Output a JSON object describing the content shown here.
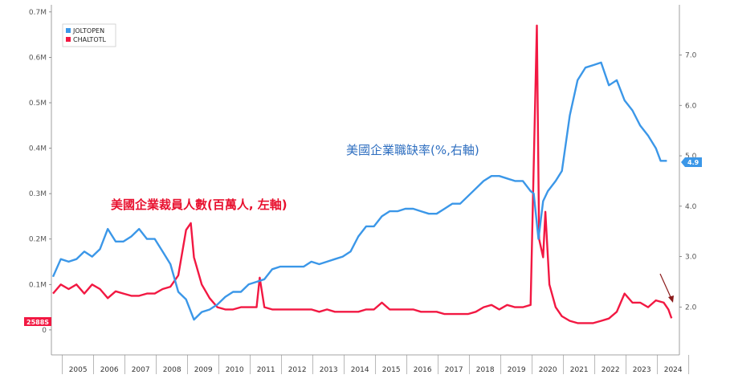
{
  "chart_data": {
    "type": "line",
    "legend": {
      "placement": "top-left"
    },
    "annotations": {
      "layoffs": "美國企業裁員人數(百萬人, 左軸)",
      "openings": "美國企業職缺率(%,右軸)"
    },
    "x_axis": {
      "range": [
        2004.65,
        2024.7
      ],
      "years": [
        "2005",
        "2006",
        "2007",
        "2008",
        "2009",
        "2010",
        "2011",
        "2012",
        "2013",
        "2014",
        "2015",
        "2016",
        "2017",
        "2018",
        "2019",
        "2020",
        "2021",
        "2022",
        "2023",
        "2024"
      ]
    },
    "left_axis": {
      "ylim": [
        -0.055,
        0.705
      ],
      "ticks": [
        "0",
        "0.1M",
        "0.2M",
        "0.3M",
        "0.4M",
        "0.5M",
        "0.6M",
        "0.7M"
      ],
      "last_value_label": "2588S",
      "last_value": 0.0256
    },
    "right_axis": {
      "ylim": [
        1.05,
        7.9
      ],
      "ticks": [
        "2.0",
        "3.0",
        "4.0",
        "5.0",
        "6.0",
        "7.0"
      ],
      "last_value_label": "4.9",
      "last_value": 4.9
    },
    "series": [
      {
        "name": "JOLTOPEN",
        "axis": "right",
        "color": "#3b97e8",
        "points": [
          [
            2004.7,
            2.6
          ],
          [
            2004.95,
            2.95
          ],
          [
            2005.2,
            2.9
          ],
          [
            2005.45,
            2.95
          ],
          [
            2005.7,
            3.1
          ],
          [
            2005.95,
            3.0
          ],
          [
            2006.2,
            3.15
          ],
          [
            2006.45,
            3.55
          ],
          [
            2006.7,
            3.3
          ],
          [
            2006.95,
            3.3
          ],
          [
            2007.2,
            3.4
          ],
          [
            2007.45,
            3.55
          ],
          [
            2007.7,
            3.35
          ],
          [
            2007.95,
            3.35
          ],
          [
            2008.2,
            3.1
          ],
          [
            2008.45,
            2.85
          ],
          [
            2008.7,
            2.3
          ],
          [
            2008.95,
            2.15
          ],
          [
            2009.2,
            1.75
          ],
          [
            2009.45,
            1.9
          ],
          [
            2009.7,
            1.95
          ],
          [
            2009.95,
            2.05
          ],
          [
            2010.2,
            2.2
          ],
          [
            2010.45,
            2.3
          ],
          [
            2010.7,
            2.3
          ],
          [
            2010.95,
            2.45
          ],
          [
            2011.2,
            2.5
          ],
          [
            2011.45,
            2.55
          ],
          [
            2011.7,
            2.75
          ],
          [
            2011.95,
            2.8
          ],
          [
            2012.2,
            2.8
          ],
          [
            2012.45,
            2.8
          ],
          [
            2012.7,
            2.8
          ],
          [
            2012.95,
            2.9
          ],
          [
            2013.2,
            2.85
          ],
          [
            2013.45,
            2.9
          ],
          [
            2013.7,
            2.95
          ],
          [
            2013.95,
            3.0
          ],
          [
            2014.2,
            3.1
          ],
          [
            2014.45,
            3.4
          ],
          [
            2014.7,
            3.6
          ],
          [
            2014.95,
            3.6
          ],
          [
            2015.2,
            3.8
          ],
          [
            2015.45,
            3.9
          ],
          [
            2015.7,
            3.9
          ],
          [
            2015.95,
            3.95
          ],
          [
            2016.2,
            3.95
          ],
          [
            2016.45,
            3.9
          ],
          [
            2016.7,
            3.85
          ],
          [
            2016.95,
            3.85
          ],
          [
            2017.2,
            3.95
          ],
          [
            2017.45,
            4.05
          ],
          [
            2017.7,
            4.05
          ],
          [
            2017.95,
            4.2
          ],
          [
            2018.2,
            4.35
          ],
          [
            2018.45,
            4.5
          ],
          [
            2018.7,
            4.6
          ],
          [
            2018.95,
            4.6
          ],
          [
            2019.2,
            4.55
          ],
          [
            2019.45,
            4.5
          ],
          [
            2019.7,
            4.5
          ],
          [
            2019.95,
            4.3
          ],
          [
            2020.05,
            4.25
          ],
          [
            2020.2,
            3.35
          ],
          [
            2020.35,
            4.1
          ],
          [
            2020.5,
            4.3
          ],
          [
            2020.75,
            4.5
          ],
          [
            2020.95,
            4.7
          ],
          [
            2021.2,
            5.8
          ],
          [
            2021.45,
            6.5
          ],
          [
            2021.7,
            6.75
          ],
          [
            2021.95,
            6.8
          ],
          [
            2022.2,
            6.85
          ],
          [
            2022.45,
            6.4
          ],
          [
            2022.7,
            6.5
          ],
          [
            2022.95,
            6.1
          ],
          [
            2023.2,
            5.9
          ],
          [
            2023.45,
            5.6
          ],
          [
            2023.7,
            5.4
          ],
          [
            2023.95,
            5.15
          ],
          [
            2024.1,
            4.9
          ],
          [
            2024.3,
            4.9
          ]
        ]
      },
      {
        "name": "CHALTOTL",
        "axis": "left",
        "color": "#f21842",
        "points": [
          [
            2004.7,
            0.08
          ],
          [
            2004.95,
            0.1
          ],
          [
            2005.2,
            0.09
          ],
          [
            2005.45,
            0.1
          ],
          [
            2005.7,
            0.08
          ],
          [
            2005.95,
            0.1
          ],
          [
            2006.2,
            0.09
          ],
          [
            2006.45,
            0.07
          ],
          [
            2006.7,
            0.085
          ],
          [
            2006.95,
            0.08
          ],
          [
            2007.2,
            0.075
          ],
          [
            2007.45,
            0.075
          ],
          [
            2007.7,
            0.08
          ],
          [
            2007.95,
            0.08
          ],
          [
            2008.2,
            0.09
          ],
          [
            2008.45,
            0.095
          ],
          [
            2008.7,
            0.12
          ],
          [
            2008.95,
            0.22
          ],
          [
            2009.1,
            0.235
          ],
          [
            2009.2,
            0.16
          ],
          [
            2009.45,
            0.1
          ],
          [
            2009.7,
            0.07
          ],
          [
            2009.95,
            0.05
          ],
          [
            2010.2,
            0.045
          ],
          [
            2010.45,
            0.045
          ],
          [
            2010.7,
            0.05
          ],
          [
            2010.95,
            0.05
          ],
          [
            2011.2,
            0.05
          ],
          [
            2011.3,
            0.115
          ],
          [
            2011.45,
            0.05
          ],
          [
            2011.7,
            0.045
          ],
          [
            2011.95,
            0.045
          ],
          [
            2012.2,
            0.045
          ],
          [
            2012.45,
            0.045
          ],
          [
            2012.7,
            0.045
          ],
          [
            2012.95,
            0.045
          ],
          [
            2013.2,
            0.04
          ],
          [
            2013.45,
            0.045
          ],
          [
            2013.7,
            0.04
          ],
          [
            2013.95,
            0.04
          ],
          [
            2014.2,
            0.04
          ],
          [
            2014.45,
            0.04
          ],
          [
            2014.7,
            0.045
          ],
          [
            2014.95,
            0.045
          ],
          [
            2015.2,
            0.06
          ],
          [
            2015.45,
            0.045
          ],
          [
            2015.7,
            0.045
          ],
          [
            2015.95,
            0.045
          ],
          [
            2016.2,
            0.045
          ],
          [
            2016.45,
            0.04
          ],
          [
            2016.7,
            0.04
          ],
          [
            2016.95,
            0.04
          ],
          [
            2017.2,
            0.035
          ],
          [
            2017.45,
            0.035
          ],
          [
            2017.7,
            0.035
          ],
          [
            2017.95,
            0.035
          ],
          [
            2018.2,
            0.04
          ],
          [
            2018.45,
            0.05
          ],
          [
            2018.7,
            0.055
          ],
          [
            2018.95,
            0.045
          ],
          [
            2019.2,
            0.055
          ],
          [
            2019.45,
            0.05
          ],
          [
            2019.7,
            0.05
          ],
          [
            2019.95,
            0.055
          ],
          [
            2020.15,
            0.67
          ],
          [
            2020.22,
            0.2
          ],
          [
            2020.35,
            0.16
          ],
          [
            2020.42,
            0.26
          ],
          [
            2020.55,
            0.1
          ],
          [
            2020.75,
            0.05
          ],
          [
            2020.95,
            0.03
          ],
          [
            2021.2,
            0.02
          ],
          [
            2021.45,
            0.015
          ],
          [
            2021.7,
            0.015
          ],
          [
            2021.95,
            0.015
          ],
          [
            2022.2,
            0.02
          ],
          [
            2022.45,
            0.025
          ],
          [
            2022.7,
            0.04
          ],
          [
            2022.95,
            0.08
          ],
          [
            2023.2,
            0.06
          ],
          [
            2023.45,
            0.06
          ],
          [
            2023.7,
            0.05
          ],
          [
            2023.95,
            0.065
          ],
          [
            2024.2,
            0.06
          ],
          [
            2024.35,
            0.045
          ],
          [
            2024.45,
            0.0256
          ]
        ]
      }
    ]
  }
}
